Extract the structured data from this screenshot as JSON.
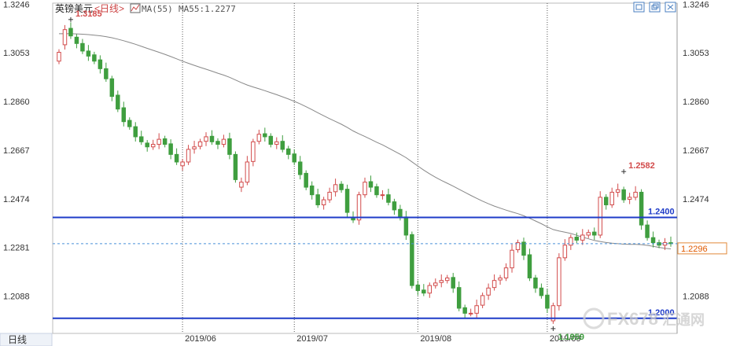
{
  "header": {
    "title": "英镑美元",
    "period": "<日线>",
    "ma_label": "MA(55)",
    "ma_value": "MA55:1.2277"
  },
  "footer": {
    "period_tab": "日线",
    "watermark": "FX678",
    "watermark_cn": "汇通网"
  },
  "colors": {
    "up": "#d24b4b",
    "down": "#3f9e3f",
    "ma": "#888888",
    "support": "#1f3cc8",
    "current": "#4a90d9"
  },
  "chart_data": {
    "type": "candlestick",
    "ylim": [
      1.194,
      1.325
    ],
    "y_ticks": [
      "1.3246",
      "1.3053",
      "1.2860",
      "1.2667",
      "1.2474",
      "1.2281",
      "1.2088"
    ],
    "x_ticks": [
      "2019/06",
      "2019/07",
      "2019/08",
      "2019/09"
    ],
    "x_tick_index": [
      21,
      40,
      61,
      83
    ],
    "annotations": [
      {
        "label": "1.3185",
        "index": 2,
        "value": 1.3185
      },
      {
        "label": "1.2582",
        "index": 96,
        "value": 1.2582
      },
      {
        "label": "1.1959",
        "index": 84,
        "value": 1.1959
      }
    ],
    "horizontal_lines": [
      {
        "value": 1.24,
        "label": "1.2400"
      },
      {
        "value": 1.2,
        "label": "1.2000"
      }
    ],
    "current": {
      "value": 1.2296,
      "label": "1.2296"
    },
    "close": [
      1.3055,
      1.3145,
      1.312,
      1.309,
      1.306,
      1.304,
      1.302,
      1.299,
      1.295,
      1.288,
      1.283,
      1.278,
      1.276,
      1.272,
      1.27,
      1.268,
      1.269,
      1.271,
      1.269,
      1.265,
      1.262,
      1.262,
      1.267,
      1.268,
      1.27,
      1.272,
      1.27,
      1.269,
      1.271,
      1.265,
      1.255,
      1.254,
      1.262,
      1.27,
      1.273,
      1.272,
      1.269,
      1.27,
      1.267,
      1.265,
      1.262,
      1.257,
      1.252,
      1.249,
      1.245,
      1.247,
      1.25,
      1.253,
      1.251,
      1.242,
      1.239,
      1.249,
      1.254,
      1.252,
      1.249,
      1.249,
      1.246,
      1.243,
      1.24,
      1.233,
      1.213,
      1.211,
      1.21,
      1.213,
      1.214,
      1.215,
      1.216,
      1.212,
      1.204,
      1.202,
      1.202,
      1.205,
      1.209,
      1.212,
      1.215,
      1.216,
      1.22,
      1.227,
      1.23,
      1.225,
      1.216,
      1.212,
      1.209,
      1.204,
      1.205,
      1.224,
      1.229,
      1.232,
      1.231,
      1.233,
      1.234,
      1.233,
      1.248,
      1.245,
      1.25,
      1.251,
      1.247,
      1.248,
      1.25,
      1.237,
      1.232,
      1.23,
      1.229,
      1.23,
      1.2296
    ],
    "open": [
      1.302,
      1.3085,
      1.315,
      1.3115,
      1.309,
      1.306,
      1.3045,
      1.3025,
      1.299,
      1.295,
      1.2885,
      1.2835,
      1.2785,
      1.276,
      1.272,
      1.2695,
      1.268,
      1.269,
      1.2712,
      1.2692,
      1.265,
      1.2605,
      1.262,
      1.2672,
      1.2682,
      1.2702,
      1.2722,
      1.2702,
      1.269,
      1.2712,
      1.265,
      1.252,
      1.254,
      1.2622,
      1.2702,
      1.2732,
      1.2722,
      1.269,
      1.2702,
      1.2672,
      1.2652,
      1.262,
      1.2575,
      1.2525,
      1.249,
      1.245,
      1.247,
      1.2502,
      1.2532,
      1.2512,
      1.24,
      1.239,
      1.249,
      1.2542,
      1.2522,
      1.249,
      1.249,
      1.2462,
      1.2432,
      1.2402,
      1.2332,
      1.2132,
      1.2112,
      1.21,
      1.213,
      1.2142,
      1.215,
      1.2162,
      1.2122,
      1.2042,
      1.202,
      1.202,
      1.2052,
      1.2092,
      1.2122,
      1.2152,
      1.216,
      1.22,
      1.2272,
      1.2302,
      1.2252,
      1.216,
      1.212,
      1.2092,
      1.199,
      1.205,
      1.224,
      1.229,
      1.2322,
      1.231,
      1.233,
      1.2342,
      1.233,
      1.248,
      1.245,
      1.25,
      1.251,
      1.2472,
      1.248,
      1.25,
      1.237,
      1.232,
      1.23,
      1.229,
      1.23
    ]
  }
}
